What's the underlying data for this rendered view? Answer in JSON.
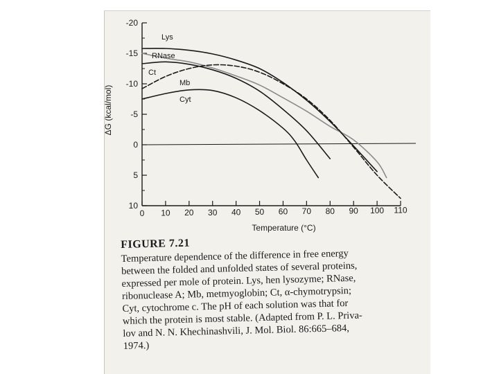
{
  "chart_data": {
    "type": "line",
    "title": "",
    "xlabel": "Temperature (°C)",
    "ylabel": "ΔG (kcal/mol)",
    "xlim": [
      0,
      110
    ],
    "ylim": [
      -20,
      10
    ],
    "y_inverted": true,
    "x_ticks": [
      "0",
      "10",
      "20",
      "30",
      "40",
      "50",
      "60",
      "70",
      "80",
      "90",
      "100",
      "110"
    ],
    "y_ticks": [
      "-20",
      "-15",
      "-10",
      "-5",
      "0",
      "5",
      "10"
    ],
    "zero_line": true,
    "grid": false,
    "series": [
      {
        "name": "Lys",
        "x": [
          0,
          10,
          20,
          30,
          40,
          50,
          60,
          70,
          80,
          90,
          100
        ],
        "y": [
          -15.8,
          -15.8,
          -15.5,
          -14.9,
          -13.9,
          -12.5,
          -10.2,
          -7.3,
          -3.8,
          0.2,
          4.4
        ]
      },
      {
        "name": "RNase",
        "x": [
          0,
          10,
          20,
          30,
          40,
          50,
          60,
          70,
          80,
          90,
          100,
          104
        ],
        "y": [
          -15.0,
          -14.2,
          -13.6,
          -12.6,
          -11.3,
          -9.8,
          -7.7,
          -5.5,
          -3.0,
          -0.8,
          2.8,
          5.4
        ]
      },
      {
        "name": "Ct",
        "x": [
          0,
          10,
          20,
          30,
          40,
          50,
          60,
          70,
          80
        ],
        "y": [
          -13.3,
          -13.6,
          -13.2,
          -12.3,
          -10.9,
          -8.8,
          -5.8,
          -2.3,
          2.3
        ]
      },
      {
        "name": "Mb",
        "x": [
          0,
          10,
          20,
          30,
          40,
          50,
          60,
          70,
          80,
          90,
          100,
          110
        ],
        "y": [
          -9.2,
          -11.2,
          -12.5,
          -13.1,
          -12.9,
          -11.9,
          -10.0,
          -7.5,
          -4.0,
          0.4,
          5.0,
          8.8
        ]
      },
      {
        "name": "Cyt",
        "x": [
          0,
          10,
          20,
          30,
          40,
          50,
          60,
          65,
          70,
          75
        ],
        "y": [
          -7.5,
          -8.4,
          -9.0,
          -8.9,
          -7.7,
          -5.6,
          -2.7,
          -0.6,
          2.5,
          5.4
        ]
      }
    ]
  },
  "figure": {
    "label": "FIGURE 7.21",
    "caption": "Temperature dependence of the difference in free energy\nbetween the folded and unfolded states of several proteins,\nexpressed per mole of protein. Lys, hen lysozyme; RNase,\nribonuclease A; Mb, metmyoglobin; Ct, α-chymotrypsin;\nCyt, cytochrome c. The pH of each solution was that for\nwhich the protein is most stable. (Adapted from P. L. Priva-\nlov and N. N. Khechinashvili, J. Mol. Biol. 86:665–684,\n1974.)"
  },
  "colors": {
    "ink": "#1a1a1a",
    "page": "#f3f1ec",
    "light_curve": "#8a8a8a"
  }
}
